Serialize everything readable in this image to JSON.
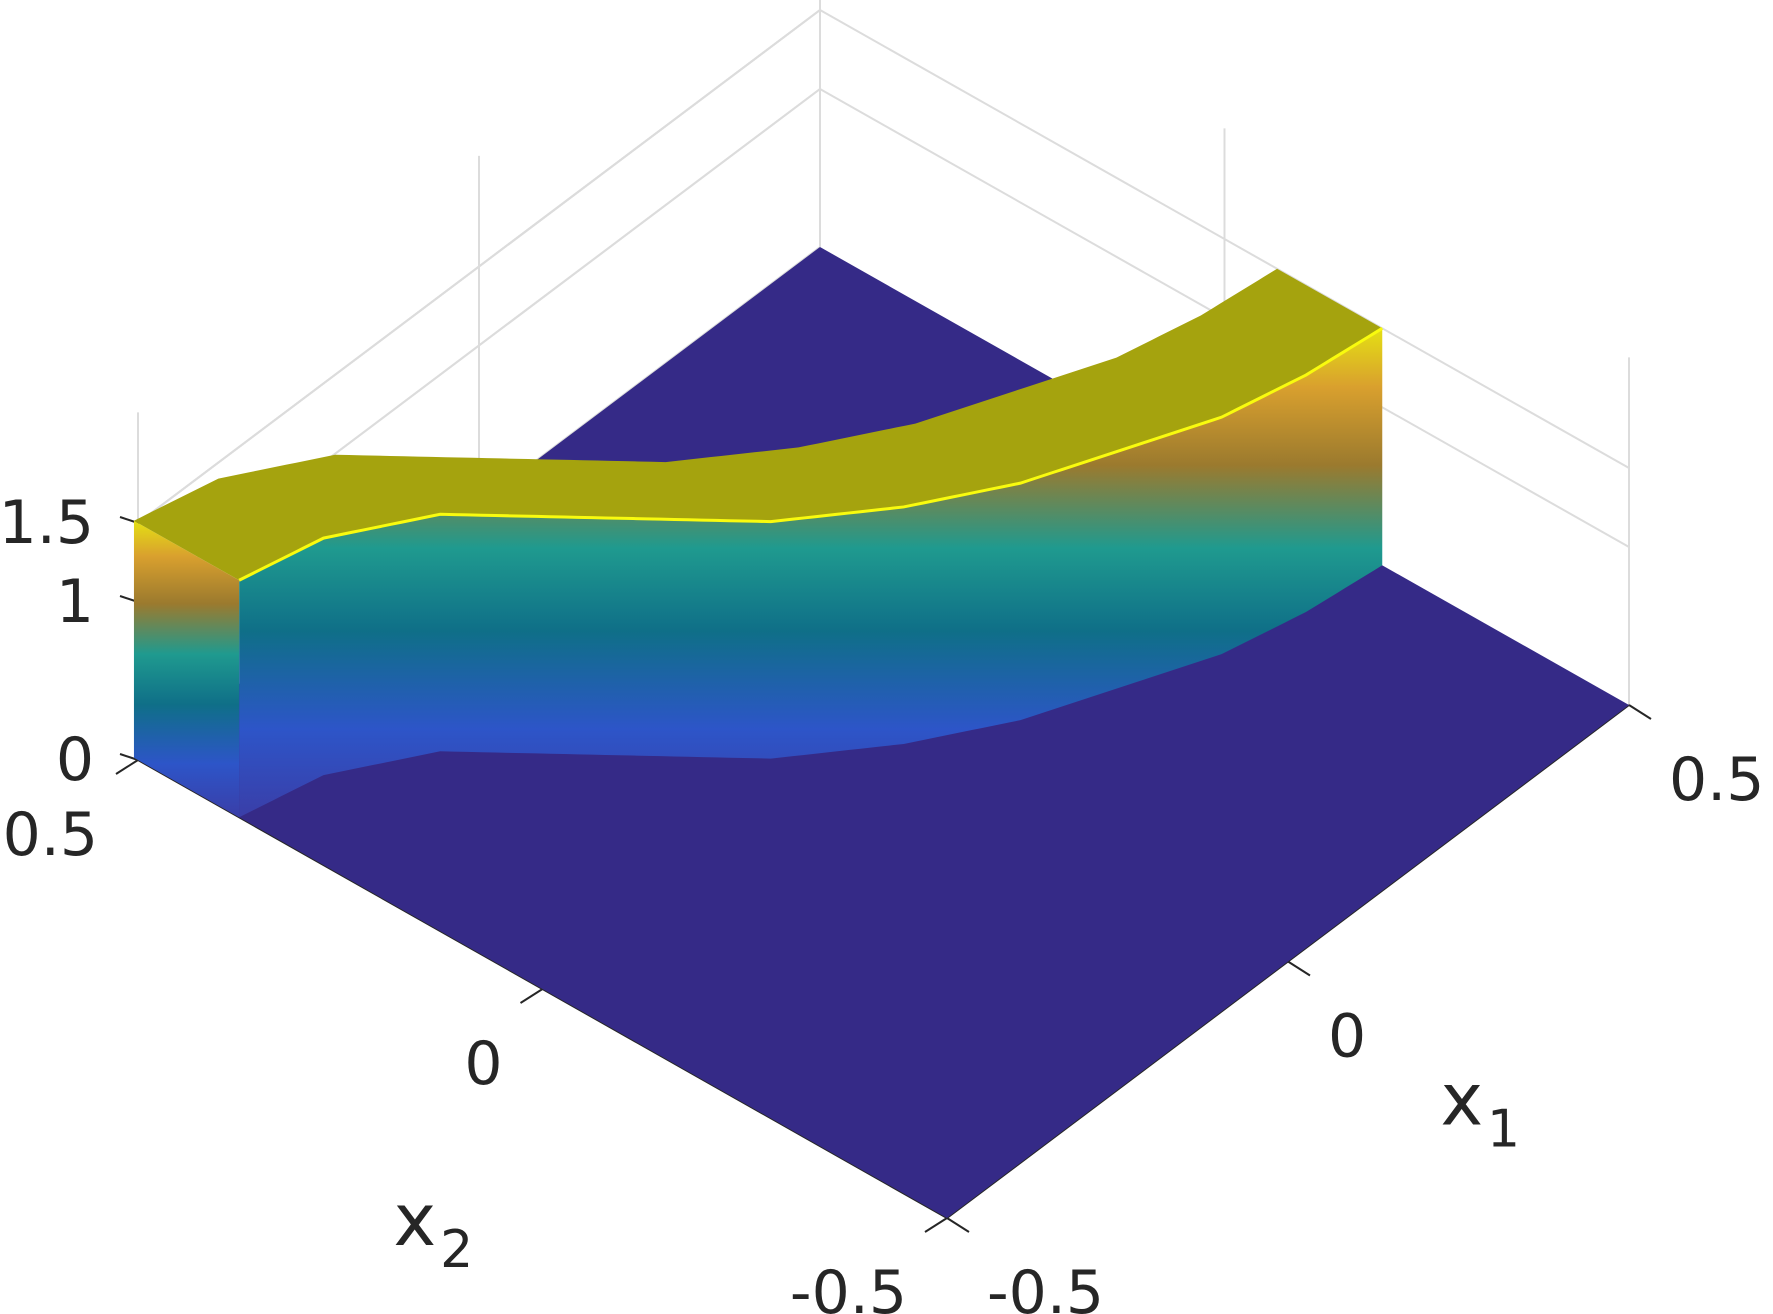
{
  "chart_data": {
    "type": "surface",
    "title": "",
    "x1label": "x",
    "x1label_sub": "1",
    "x2label": "x",
    "x2label_sub": "2",
    "x1lim": [
      -0.5,
      0.5
    ],
    "x2lim": [
      -0.5,
      0.5
    ],
    "zlim": [
      0,
      1.5
    ],
    "x1ticks": [
      {
        "value": -0.5,
        "label": "-0.5"
      },
      {
        "value": 0,
        "label": "0"
      },
      {
        "value": 0.5,
        "label": "0.5"
      }
    ],
    "x2ticks": [
      {
        "value": 0.5,
        "label": "0.5"
      },
      {
        "value": 0,
        "label": "0"
      },
      {
        "value": -0.5,
        "label": "-0.5"
      }
    ],
    "zticks": [
      {
        "value": 0,
        "label": "0"
      },
      {
        "value": 1,
        "label": "1"
      },
      {
        "value": 1.5,
        "label": "1.5"
      }
    ],
    "grid": true,
    "colormap": "parula",
    "base_value": 0,
    "ridge_height": 1.5,
    "ridge_width": 0.13,
    "ridge_centerline": {
      "x1": [
        -0.5,
        -0.4,
        -0.3,
        -0.2,
        -0.1,
        0.0,
        0.1,
        0.2,
        0.3,
        0.4,
        0.5
      ],
      "x2": [
        0.44,
        0.42,
        0.36,
        0.24,
        0.12,
        0.04,
        -0.02,
        -0.06,
        -0.1,
        -0.12,
        -0.13
      ]
    },
    "colors": {
      "low": "#352a87",
      "mid": "#1ba6a6",
      "high": "#f9fb0e"
    }
  }
}
